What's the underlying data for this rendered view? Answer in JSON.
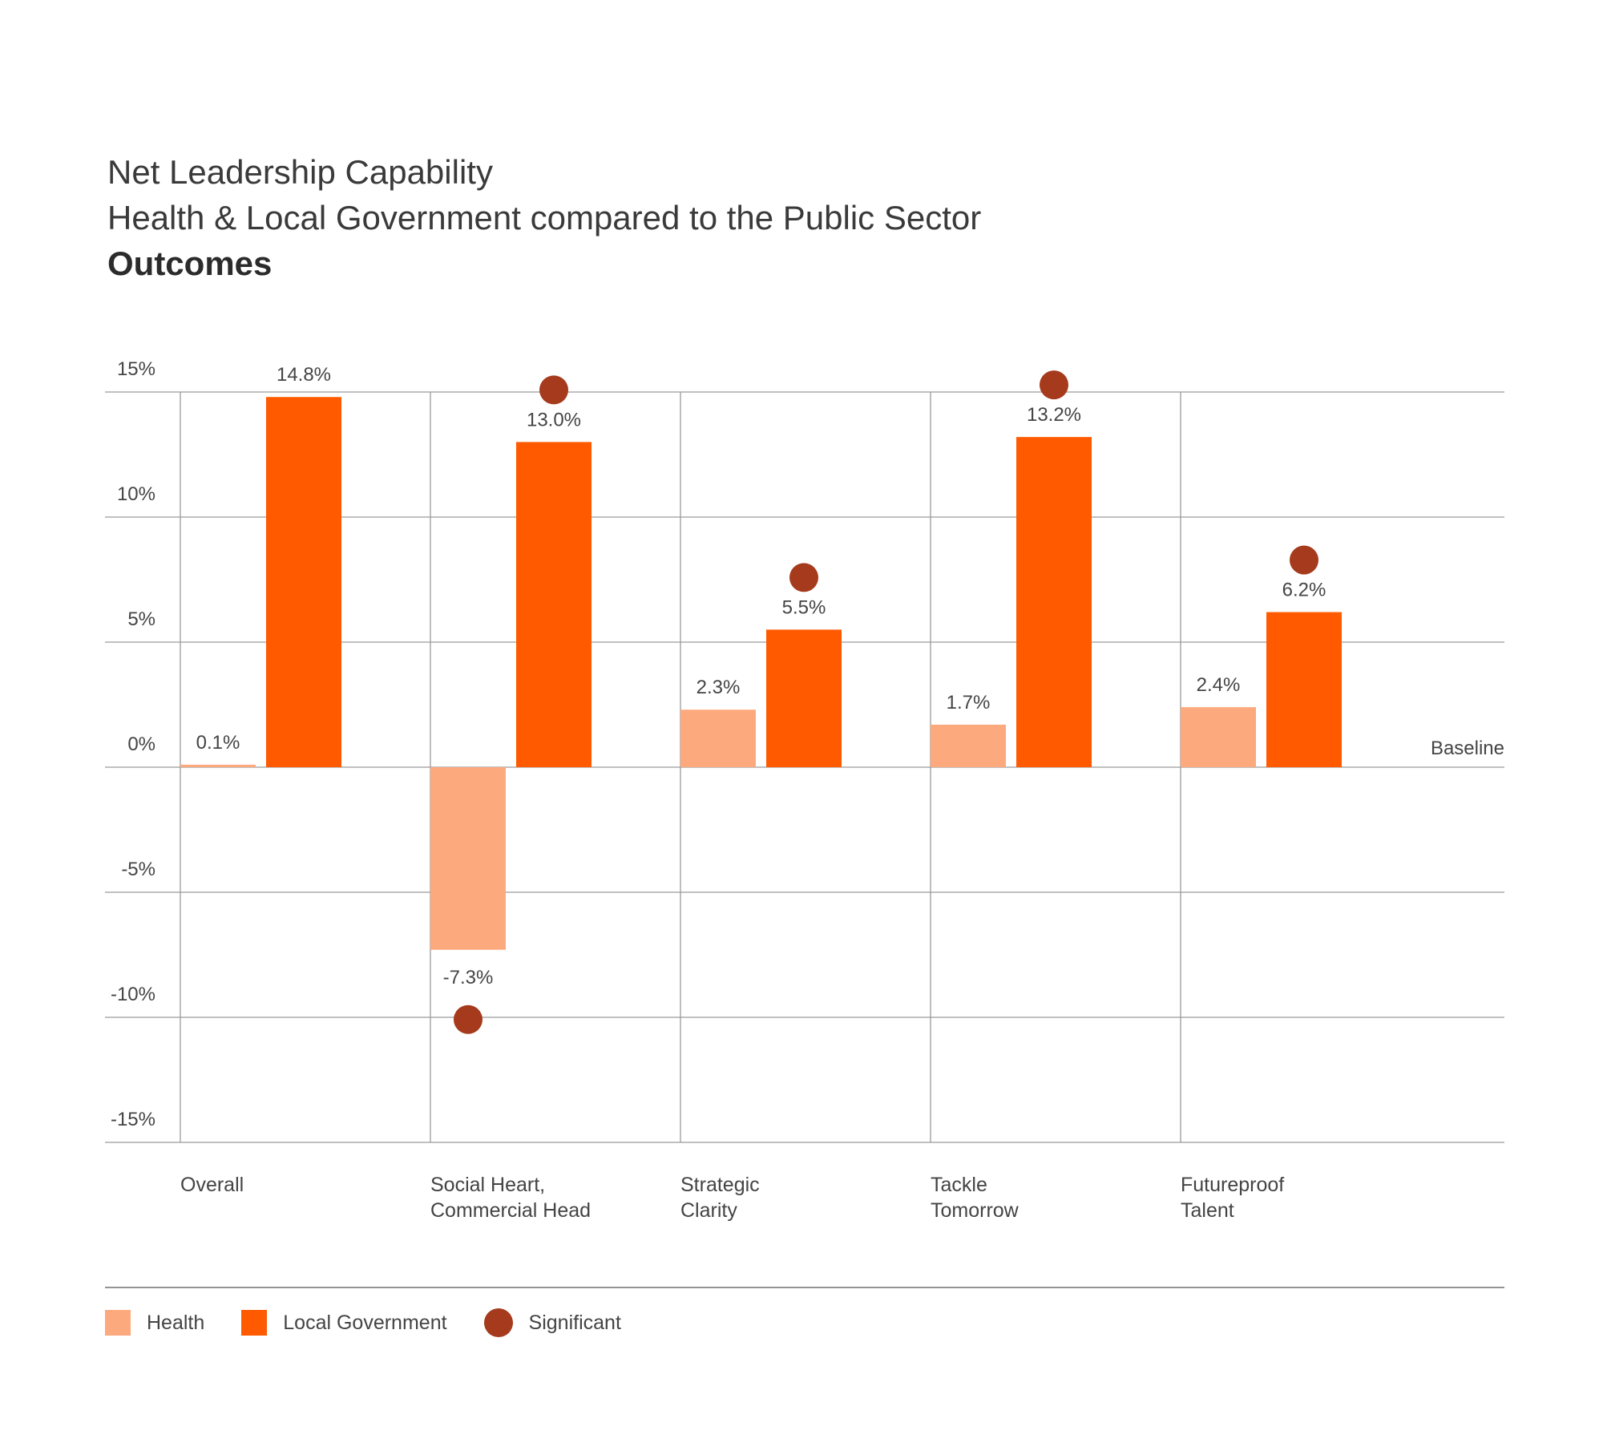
{
  "title": "Net Leadership Capability",
  "subtitle": "Health & Local Government compared to the Public Sector",
  "section": "Outcomes",
  "colors": {
    "health": "#FDA97E",
    "local_government": "#FF5A00",
    "significant": "#A53A1C",
    "grid": "#9a9a9a"
  },
  "chart_data": {
    "type": "bar",
    "title": "Net Leadership Capability",
    "subtitle": "Health & Local Government compared to the Public Sector",
    "categories": [
      [
        "Overall"
      ],
      [
        "Social Heart,",
        "Commercial Head"
      ],
      [
        "Strategic",
        "Clarity"
      ],
      [
        "Tackle",
        "Tomorrow"
      ],
      [
        "Futureproof",
        "Talent"
      ]
    ],
    "series": [
      {
        "name": "Health",
        "values": [
          0.1,
          -7.3,
          2.3,
          1.7,
          2.4
        ],
        "labels": [
          "0.1%",
          "-7.3%",
          "2.3%",
          "1.7%",
          "2.4%"
        ],
        "significant": [
          false,
          true,
          false,
          false,
          false
        ]
      },
      {
        "name": "Local Government",
        "values": [
          14.8,
          13.0,
          5.5,
          13.2,
          6.2
        ],
        "labels": [
          "14.8%",
          "13.0%",
          "5.5%",
          "13.2%",
          "6.2%"
        ],
        "significant": [
          false,
          true,
          true,
          true,
          true
        ]
      }
    ],
    "ylim": [
      -15,
      15
    ],
    "yticks": [
      15,
      10,
      5,
      0,
      -5,
      -10,
      -15
    ],
    "ytick_labels": [
      "15%",
      "10%",
      "5%",
      "0%",
      "-5%",
      "-10%",
      "-15%"
    ],
    "baseline_label": "Baseline",
    "grid": true,
    "legend_position": "bottom-left"
  },
  "legend": {
    "health": "Health",
    "local_government": "Local Government",
    "significant": "Significant"
  }
}
